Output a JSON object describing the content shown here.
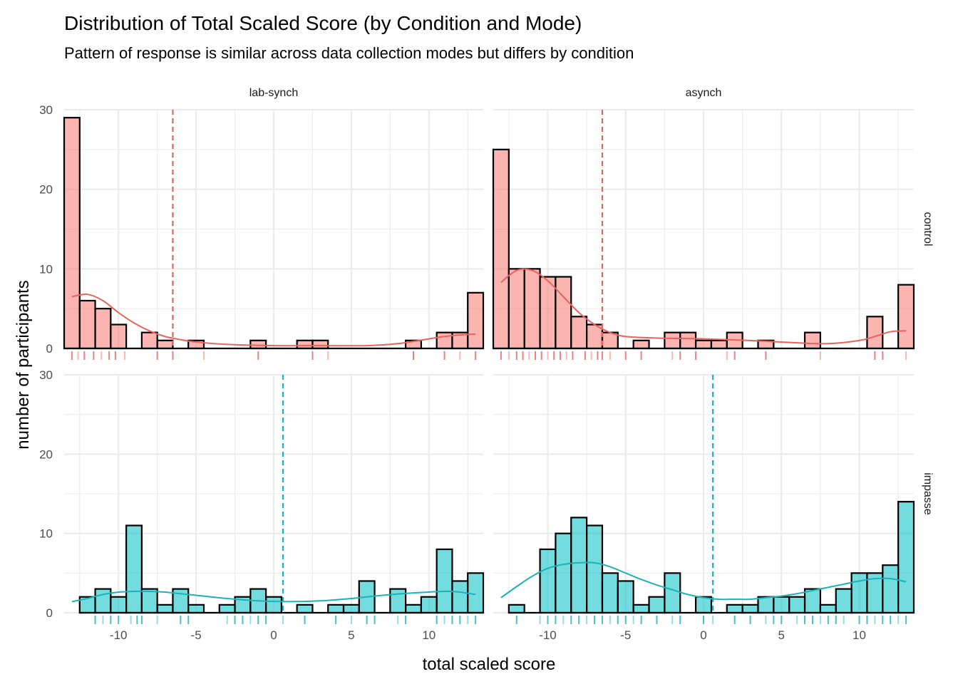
{
  "title": "Distribution of Total Scaled Score (by Condition and Mode)",
  "subtitle": "Pattern of response is similar across data collection modes but differs by condition",
  "colors": {
    "control": "#F8766D",
    "impasse": "#00BFC4",
    "control_line": "#E8635B",
    "impasse_line": "#1BB3B8"
  },
  "chart_data": {
    "type": "bar",
    "chart_kind": "faceted histogram",
    "xlabel": "total scaled score",
    "ylabel": "number of participants",
    "xlim": [
      -13.5,
      13.5
    ],
    "ylim": [
      0,
      30
    ],
    "x_ticks": [
      -10,
      -5,
      0,
      5,
      10
    ],
    "y_ticks": [
      0,
      10,
      20,
      30
    ],
    "bin_width": 1,
    "grid": true,
    "column_facets": [
      "lab-synch",
      "asynch"
    ],
    "row_facets": [
      "control",
      "impasse"
    ],
    "panels": [
      {
        "mode": "lab-synch",
        "condition": "control",
        "mean_line_x": -6.5,
        "bins": [
          {
            "x": -13,
            "count": 29
          },
          {
            "x": -12,
            "count": 6
          },
          {
            "x": -11,
            "count": 5
          },
          {
            "x": -10,
            "count": 3
          },
          {
            "x": -8,
            "count": 2
          },
          {
            "x": -7,
            "count": 1
          },
          {
            "x": -5,
            "count": 1
          },
          {
            "x": -1,
            "count": 1
          },
          {
            "x": 2,
            "count": 1
          },
          {
            "x": 3,
            "count": 1
          },
          {
            "x": 9,
            "count": 1
          },
          {
            "x": 11,
            "count": 2
          },
          {
            "x": 12,
            "count": 2
          },
          {
            "x": 13,
            "count": 7
          }
        ],
        "density_curve": [
          {
            "x": -13,
            "y": 6.5
          },
          {
            "x": -12,
            "y": 6.8
          },
          {
            "x": -11,
            "y": 6.0
          },
          {
            "x": -10,
            "y": 4.5
          },
          {
            "x": -9,
            "y": 3.2
          },
          {
            "x": -8,
            "y": 2.2
          },
          {
            "x": -7,
            "y": 1.5
          },
          {
            "x": -6,
            "y": 1.1
          },
          {
            "x": -5,
            "y": 0.8
          },
          {
            "x": -3,
            "y": 0.5
          },
          {
            "x": 0,
            "y": 0.35
          },
          {
            "x": 3,
            "y": 0.35
          },
          {
            "x": 6,
            "y": 0.35
          },
          {
            "x": 8,
            "y": 0.6
          },
          {
            "x": 10,
            "y": 1.2
          },
          {
            "x": 11,
            "y": 1.5
          },
          {
            "x": 12,
            "y": 1.7
          },
          {
            "x": 13,
            "y": 1.8
          }
        ],
        "rug_x": [
          -13,
          -12.6,
          -12.2,
          -11.6,
          -11.1,
          -10.6,
          -10.2,
          -9.6,
          -7.5,
          -6.5,
          -4.5,
          -1,
          2.5,
          3.5,
          9,
          11,
          12,
          13
        ]
      },
      {
        "mode": "asynch",
        "condition": "control",
        "mean_line_x": -6.5,
        "bins": [
          {
            "x": -13,
            "count": 25
          },
          {
            "x": -12,
            "count": 10
          },
          {
            "x": -11,
            "count": 10
          },
          {
            "x": -10,
            "count": 9
          },
          {
            "x": -9,
            "count": 9
          },
          {
            "x": -8,
            "count": 4
          },
          {
            "x": -7,
            "count": 3
          },
          {
            "x": -6,
            "count": 2
          },
          {
            "x": -4,
            "count": 1
          },
          {
            "x": -2,
            "count": 2
          },
          {
            "x": -1,
            "count": 2
          },
          {
            "x": 0,
            "count": 1
          },
          {
            "x": 1,
            "count": 1
          },
          {
            "x": 2,
            "count": 2
          },
          {
            "x": 4,
            "count": 1
          },
          {
            "x": 7,
            "count": 2
          },
          {
            "x": 11,
            "count": 4
          },
          {
            "x": 13,
            "count": 8
          }
        ],
        "density_curve": [
          {
            "x": -13,
            "y": 8.3
          },
          {
            "x": -12,
            "y": 9.8
          },
          {
            "x": -11,
            "y": 9.8
          },
          {
            "x": -10,
            "y": 8.5
          },
          {
            "x": -9,
            "y": 6.5
          },
          {
            "x": -8,
            "y": 4.5
          },
          {
            "x": -7,
            "y": 3.0
          },
          {
            "x": -6,
            "y": 2.0
          },
          {
            "x": -5,
            "y": 1.5
          },
          {
            "x": -3,
            "y": 1.3
          },
          {
            "x": 0,
            "y": 1.2
          },
          {
            "x": 3,
            "y": 1.0
          },
          {
            "x": 6,
            "y": 0.7
          },
          {
            "x": 8,
            "y": 0.6
          },
          {
            "x": 10,
            "y": 1.0
          },
          {
            "x": 11,
            "y": 1.5
          },
          {
            "x": 12,
            "y": 2.1
          },
          {
            "x": 13,
            "y": 2.2
          }
        ],
        "rug_x": [
          -13,
          -12.5,
          -12,
          -11.6,
          -11.2,
          -10.8,
          -10.4,
          -10,
          -9.6,
          -9.2,
          -8.8,
          -8.4,
          -7.6,
          -7.2,
          -6.8,
          -6.5,
          -6,
          -5,
          -4,
          -2,
          -1.5,
          -0.5,
          1.5,
          2,
          4,
          7.5,
          11,
          11.5,
          13
        ]
      },
      {
        "mode": "lab-synch",
        "condition": "impasse",
        "mean_line_x": 0.6,
        "bins": [
          {
            "x": -12,
            "count": 2
          },
          {
            "x": -11,
            "count": 3
          },
          {
            "x": -10,
            "count": 2
          },
          {
            "x": -9,
            "count": 11
          },
          {
            "x": -8,
            "count": 3
          },
          {
            "x": -7,
            "count": 1
          },
          {
            "x": -6,
            "count": 3
          },
          {
            "x": -5,
            "count": 1
          },
          {
            "x": -3,
            "count": 1
          },
          {
            "x": -2,
            "count": 2
          },
          {
            "x": -1,
            "count": 3
          },
          {
            "x": 0,
            "count": 2
          },
          {
            "x": 2,
            "count": 1
          },
          {
            "x": 4,
            "count": 1
          },
          {
            "x": 5,
            "count": 1
          },
          {
            "x": 6,
            "count": 4
          },
          {
            "x": 8,
            "count": 3
          },
          {
            "x": 9,
            "count": 1
          },
          {
            "x": 10,
            "count": 2
          },
          {
            "x": 11,
            "count": 8
          },
          {
            "x": 12,
            "count": 4
          },
          {
            "x": 13,
            "count": 5
          }
        ],
        "density_curve": [
          {
            "x": -13,
            "y": 1.4
          },
          {
            "x": -12,
            "y": 1.8
          },
          {
            "x": -11,
            "y": 2.3
          },
          {
            "x": -10,
            "y": 2.6
          },
          {
            "x": -9,
            "y": 2.7
          },
          {
            "x": -8,
            "y": 2.7
          },
          {
            "x": -7,
            "y": 2.6
          },
          {
            "x": -6,
            "y": 2.4
          },
          {
            "x": -5,
            "y": 2.2
          },
          {
            "x": -3,
            "y": 1.8
          },
          {
            "x": -1,
            "y": 1.5
          },
          {
            "x": 1,
            "y": 1.4
          },
          {
            "x": 3,
            "y": 1.5
          },
          {
            "x": 5,
            "y": 1.8
          },
          {
            "x": 7,
            "y": 2.2
          },
          {
            "x": 9,
            "y": 2.5
          },
          {
            "x": 11,
            "y": 2.7
          },
          {
            "x": 12,
            "y": 2.6
          },
          {
            "x": 13,
            "y": 2.3
          }
        ],
        "rug_x": [
          -11.5,
          -11,
          -10.5,
          -10,
          -9.2,
          -8.8,
          -8.5,
          -7.5,
          -6,
          -5.5,
          -3,
          -2.5,
          -2,
          -1.5,
          -1,
          -0.5,
          0.6,
          2,
          4,
          5,
          6,
          6.5,
          8,
          8.5,
          10.5,
          11,
          11.5,
          12,
          12.5,
          13
        ]
      },
      {
        "mode": "asynch",
        "condition": "impasse",
        "mean_line_x": 0.6,
        "bins": [
          {
            "x": -12,
            "count": 1
          },
          {
            "x": -10,
            "count": 8
          },
          {
            "x": -9,
            "count": 10
          },
          {
            "x": -8,
            "count": 12
          },
          {
            "x": -7,
            "count": 11
          },
          {
            "x": -6,
            "count": 5
          },
          {
            "x": -5,
            "count": 4
          },
          {
            "x": -4,
            "count": 1
          },
          {
            "x": -3,
            "count": 2
          },
          {
            "x": -2,
            "count": 5
          },
          {
            "x": 0,
            "count": 2
          },
          {
            "x": 2,
            "count": 1
          },
          {
            "x": 3,
            "count": 1
          },
          {
            "x": 4,
            "count": 2
          },
          {
            "x": 5,
            "count": 2
          },
          {
            "x": 6,
            "count": 2
          },
          {
            "x": 7,
            "count": 3
          },
          {
            "x": 8,
            "count": 1
          },
          {
            "x": 9,
            "count": 3
          },
          {
            "x": 10,
            "count": 5
          },
          {
            "x": 11,
            "count": 5
          },
          {
            "x": 12,
            "count": 6
          },
          {
            "x": 13,
            "count": 14
          }
        ],
        "density_curve": [
          {
            "x": -13,
            "y": 1.9
          },
          {
            "x": -12,
            "y": 3.3
          },
          {
            "x": -11,
            "y": 4.6
          },
          {
            "x": -10,
            "y": 5.6
          },
          {
            "x": -9,
            "y": 6.1
          },
          {
            "x": -8,
            "y": 6.3
          },
          {
            "x": -7,
            "y": 6.3
          },
          {
            "x": -6,
            "y": 5.8
          },
          {
            "x": -5,
            "y": 5.0
          },
          {
            "x": -4,
            "y": 4.2
          },
          {
            "x": -3,
            "y": 3.5
          },
          {
            "x": -2,
            "y": 2.9
          },
          {
            "x": -1,
            "y": 2.3
          },
          {
            "x": 0,
            "y": 1.9
          },
          {
            "x": 1,
            "y": 1.7
          },
          {
            "x": 2,
            "y": 1.7
          },
          {
            "x": 3,
            "y": 1.7
          },
          {
            "x": 4,
            "y": 1.9
          },
          {
            "x": 5,
            "y": 2.1
          },
          {
            "x": 6,
            "y": 2.4
          },
          {
            "x": 7,
            "y": 2.8
          },
          {
            "x": 8,
            "y": 3.2
          },
          {
            "x": 9,
            "y": 3.6
          },
          {
            "x": 10,
            "y": 4.0
          },
          {
            "x": 11,
            "y": 4.3
          },
          {
            "x": 12,
            "y": 4.3
          },
          {
            "x": 13,
            "y": 3.9
          }
        ],
        "rug_x": [
          -12,
          -10.5,
          -10,
          -9.5,
          -9,
          -8.5,
          -8,
          -7.5,
          -7,
          -6.5,
          -6,
          -5.5,
          -5,
          -4.5,
          -4,
          -3,
          -2,
          -1.5,
          0,
          0.6,
          2,
          3,
          4,
          4.5,
          5,
          6,
          6.5,
          7,
          7.5,
          8,
          8.5,
          9,
          10,
          10.5,
          11,
          11.5,
          12,
          12.5,
          13
        ]
      }
    ]
  }
}
